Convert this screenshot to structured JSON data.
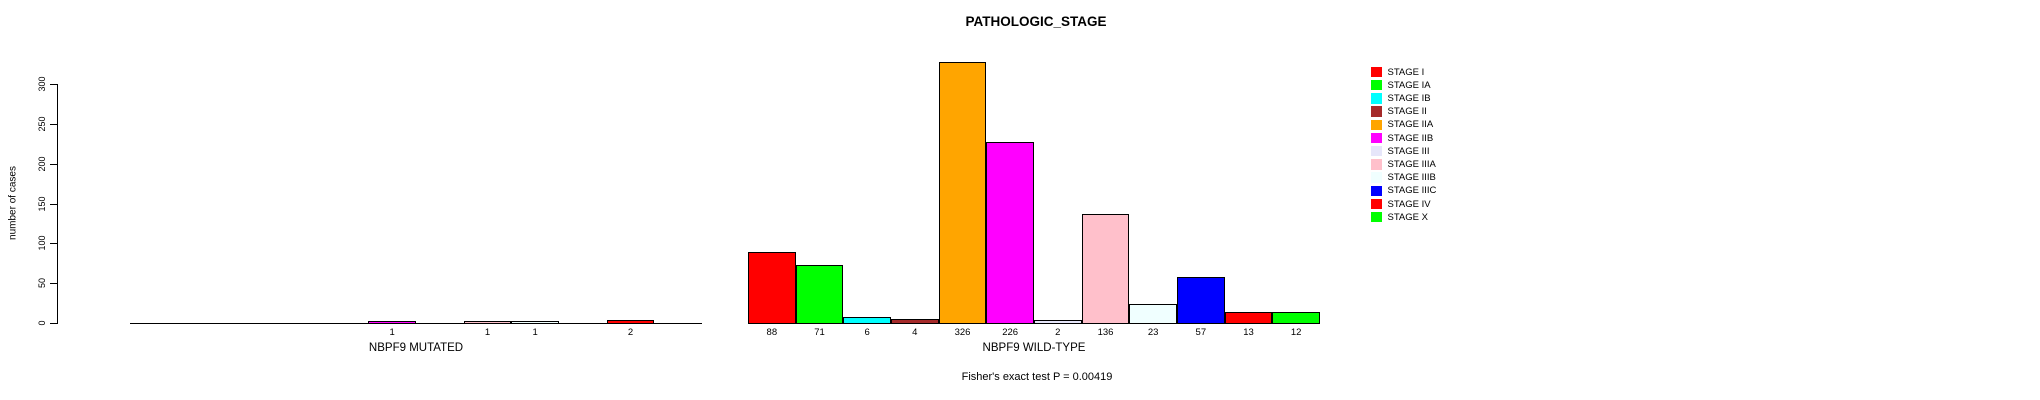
{
  "chart_data": {
    "type": "bar",
    "title": "PATHOLOGIC_STAGE",
    "ylabel": "number of cases",
    "xlabel": "",
    "ylim": [
      0,
      300
    ],
    "yticks": [
      0,
      50,
      100,
      150,
      200,
      250,
      300
    ],
    "grid": false,
    "legend_position": "right",
    "categories": [
      "STAGE I",
      "STAGE IA",
      "STAGE IB",
      "STAGE II",
      "STAGE IIA",
      "STAGE IIB",
      "STAGE III",
      "STAGE IIIA",
      "STAGE IIIB",
      "STAGE IIIC",
      "STAGE IV",
      "STAGE X"
    ],
    "colors": [
      "#FF0000",
      "#00FF00",
      "#00FFFF",
      "#A52A2A",
      "#FFA500",
      "#FF00FF",
      "#E6E6FA",
      "#FFC0CB",
      "#F0FFFF",
      "#0000FF",
      "#FF0000",
      "#00FF00"
    ],
    "series": [
      {
        "name": "NBPF9 MUTATED",
        "values": [
          0,
          0,
          0,
          0,
          0,
          1,
          0,
          1,
          1,
          0,
          2,
          0
        ]
      },
      {
        "name": "NBPF9 WILD-TYPE",
        "values": [
          88,
          71,
          6,
          4,
          326,
          226,
          2,
          136,
          23,
          57,
          13,
          12
        ]
      }
    ],
    "bar_value_labels_shown_for": "values greater than 0",
    "annotation": "Fisher's exact test P = 0.00419"
  }
}
